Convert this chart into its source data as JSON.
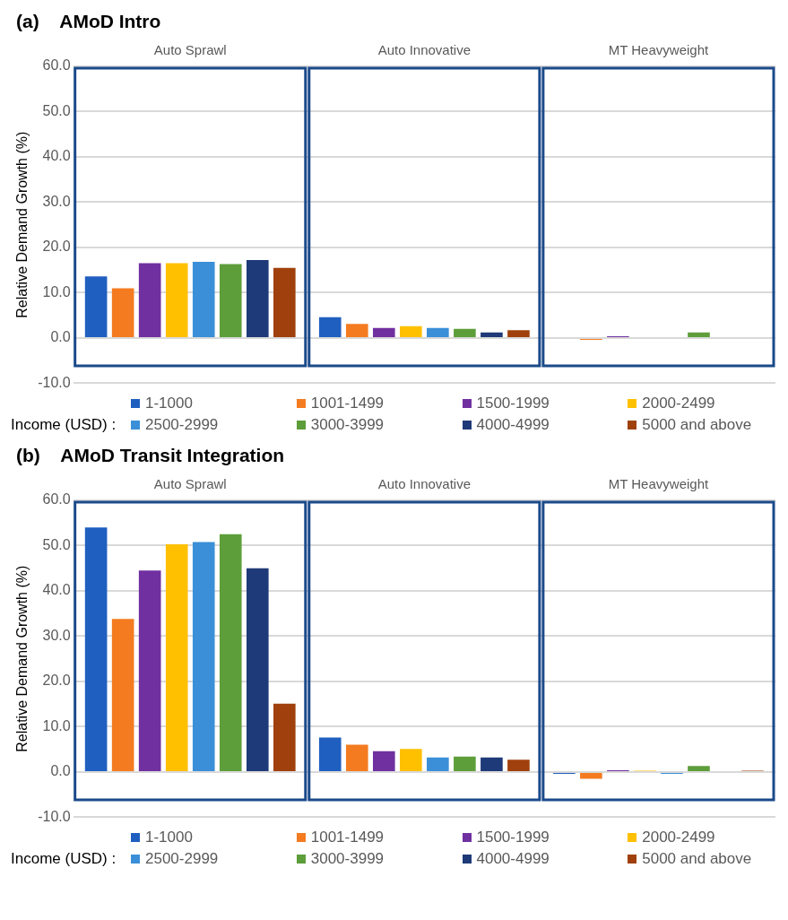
{
  "chart_data": [
    {
      "type": "bar",
      "title": "(a)    AMoD Intro",
      "ylabel": "Relative Demand Growth (%)",
      "legend_title": "Income (USD) :",
      "legend": "bottom",
      "grid": "y",
      "categories": [
        "Auto Sprawl",
        "Auto Innovative",
        "MT Heavyweight"
      ],
      "ylim": [
        -10,
        60
      ],
      "yticks": [
        {
          "value": -10,
          "label": "-10.0"
        },
        {
          "value": 0,
          "label": "0.0"
        },
        {
          "value": 10,
          "label": "10.0"
        },
        {
          "value": 20,
          "label": "20.0"
        },
        {
          "value": 30,
          "label": "30.0"
        },
        {
          "value": 40,
          "label": "40.0"
        },
        {
          "value": 50,
          "label": "50.0"
        },
        {
          "value": 60,
          "label": "60.0"
        }
      ],
      "series": [
        {
          "name": "1-1000",
          "color": "#1f5fbf",
          "values": [
            13.6,
            4.6,
            0
          ]
        },
        {
          "name": "1001-1499",
          "color": "#f47b20",
          "values": [
            11.0,
            3.1,
            -0.4
          ]
        },
        {
          "name": "1500-1999",
          "color": "#7030a0",
          "values": [
            16.5,
            2.2,
            0.4
          ]
        },
        {
          "name": "2000-2499",
          "color": "#ffc000",
          "values": [
            16.5,
            2.6,
            0
          ]
        },
        {
          "name": "2500-2999",
          "color": "#3a8fd8",
          "values": [
            16.8,
            2.2,
            0
          ]
        },
        {
          "name": "3000-3999",
          "color": "#5d9e3a",
          "values": [
            16.3,
            2.0,
            1.2
          ]
        },
        {
          "name": "4000-4999",
          "color": "#1f3a78",
          "values": [
            17.2,
            1.2,
            0
          ]
        },
        {
          "name": "5000 and above",
          "color": "#a0400c",
          "values": [
            15.5,
            1.7,
            0
          ]
        }
      ]
    },
    {
      "type": "bar",
      "title": "(b)    AMoD Transit Integration",
      "ylabel": "Relative Demand Growth (%)",
      "legend_title": "Income (USD) :",
      "legend": "bottom",
      "grid": "y",
      "categories": [
        "Auto Sprawl",
        "Auto Innovative",
        "MT Heavyweight"
      ],
      "ylim": [
        -10,
        60
      ],
      "yticks": [
        {
          "value": -10,
          "label": "-10.0"
        },
        {
          "value": 0,
          "label": "0.0"
        },
        {
          "value": 10,
          "label": "10.0"
        },
        {
          "value": 20,
          "label": "20.0"
        },
        {
          "value": 30,
          "label": "30.0"
        },
        {
          "value": 40,
          "label": "40.0"
        },
        {
          "value": 50,
          "label": "50.0"
        },
        {
          "value": 60,
          "label": "60.0"
        }
      ],
      "series": [
        {
          "name": "1-1000",
          "color": "#1f5fbf",
          "values": [
            54.0,
            7.6,
            -0.4
          ]
        },
        {
          "name": "1001-1499",
          "color": "#f47b20",
          "values": [
            33.8,
            6.0,
            -1.5
          ]
        },
        {
          "name": "1500-1999",
          "color": "#7030a0",
          "values": [
            44.5,
            4.6,
            0.4
          ]
        },
        {
          "name": "2000-2499",
          "color": "#ffc000",
          "values": [
            50.3,
            5.1,
            0.3
          ]
        },
        {
          "name": "2500-2999",
          "color": "#3a8fd8",
          "values": [
            50.8,
            3.2,
            -0.4
          ]
        },
        {
          "name": "3000-3999",
          "color": "#5d9e3a",
          "values": [
            52.5,
            3.4,
            1.3
          ]
        },
        {
          "name": "4000-4999",
          "color": "#1f3a78",
          "values": [
            45.0,
            3.2,
            0
          ]
        },
        {
          "name": "5000 and above",
          "color": "#a0400c",
          "values": [
            15.1,
            2.7,
            0.3
          ]
        }
      ]
    }
  ]
}
